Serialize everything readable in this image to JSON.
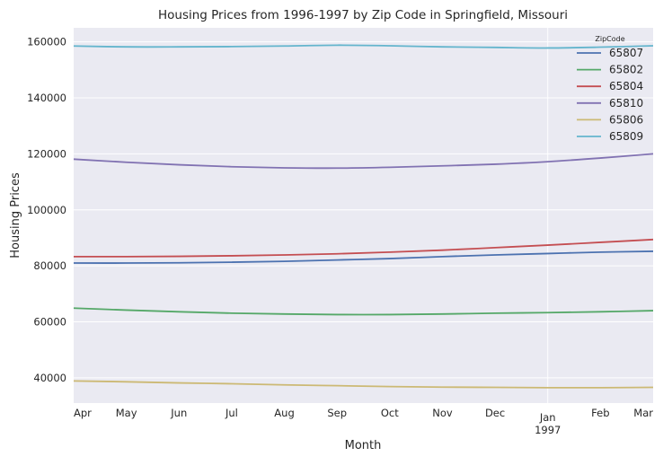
{
  "chart_data": {
    "type": "line",
    "title": "Housing Prices from 1996-1997 by Zip Code in Springfield, Missouri",
    "xlabel": "Month",
    "ylabel": "Housing Prices",
    "x": [
      "1996-04",
      "1996-05",
      "1996-06",
      "1996-07",
      "1996-08",
      "1996-09",
      "1996-10",
      "1996-11",
      "1996-12",
      "1997-01",
      "1997-02",
      "1997-03"
    ],
    "x_tick_labels": [
      "Apr",
      "May",
      "Jun",
      "Jul",
      "Aug",
      "Sep",
      "Oct",
      "Nov",
      "Dec",
      "Jan",
      "Feb",
      "Mar"
    ],
    "x_year_label": "1997",
    "y_ticks": [
      40000,
      60000,
      80000,
      100000,
      120000,
      140000,
      160000
    ],
    "y_tick_labels": [
      "40000",
      "60000",
      "80000",
      "100000",
      "120000",
      "140000",
      "160000"
    ],
    "ylim": [
      31000,
      165000
    ],
    "grid": true,
    "legend_title": "ZipCode",
    "legend_position": "top-right",
    "series": [
      {
        "name": "65807",
        "color": "#4c72b0",
        "values": [
          81000,
          81000,
          81100,
          81300,
          81600,
          82100,
          82600,
          83300,
          83900,
          84400,
          84900,
          85200
        ]
      },
      {
        "name": "65802",
        "color": "#55a868",
        "values": [
          64900,
          64200,
          63600,
          63100,
          62800,
          62600,
          62600,
          62800,
          63100,
          63300,
          63600,
          64000
        ]
      },
      {
        "name": "65804",
        "color": "#c44e52",
        "values": [
          83300,
          83300,
          83400,
          83600,
          83900,
          84300,
          84900,
          85600,
          86500,
          87400,
          88400,
          89400
        ]
      },
      {
        "name": "65810",
        "color": "#8172b2",
        "values": [
          118100,
          117000,
          116100,
          115400,
          115000,
          114900,
          115200,
          115700,
          116300,
          117200,
          118500,
          120000
        ]
      },
      {
        "name": "65806",
        "color": "#ccb974",
        "values": [
          38900,
          38600,
          38200,
          37900,
          37500,
          37200,
          36900,
          36700,
          36600,
          36500,
          36500,
          36600
        ]
      },
      {
        "name": "65809",
        "color": "#64b5cd",
        "values": [
          158500,
          158200,
          158200,
          158300,
          158500,
          158800,
          158600,
          158200,
          158000,
          157800,
          158100,
          158600
        ]
      }
    ]
  }
}
